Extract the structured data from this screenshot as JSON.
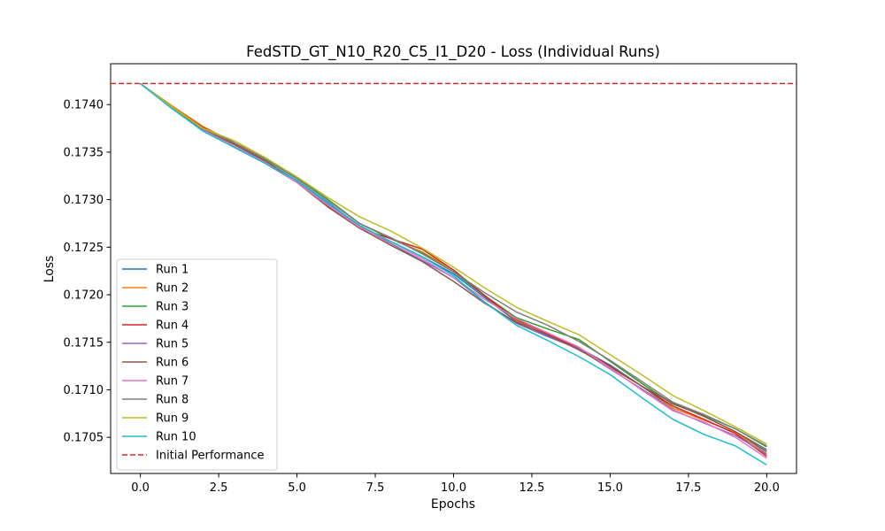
{
  "chart_data": {
    "type": "line",
    "title": "FedSTD_GT_N10_R20_C5_I1_D20 - Loss (Individual Runs)",
    "xlabel": "Epochs",
    "ylabel": "Loss",
    "xlim": [
      -0.95,
      20.95
    ],
    "ylim": [
      0.17012,
      0.17443
    ],
    "xticks": [
      0.0,
      2.5,
      5.0,
      7.5,
      10.0,
      12.5,
      15.0,
      17.5,
      20.0
    ],
    "xtick_labels": [
      "0.0",
      "2.5",
      "5.0",
      "7.5",
      "10.0",
      "12.5",
      "15.0",
      "17.5",
      "20.0"
    ],
    "yticks": [
      0.1705,
      0.171,
      0.1715,
      0.172,
      0.1725,
      0.173,
      0.1735,
      0.174
    ],
    "ytick_labels": [
      "0.1705",
      "0.1710",
      "0.1715",
      "0.1720",
      "0.1725",
      "0.1730",
      "0.1735",
      "0.1740"
    ],
    "grid": false,
    "legend_position": "lower-left",
    "x": [
      0,
      1,
      2,
      3,
      4,
      5,
      6,
      7,
      8,
      9,
      10,
      11,
      12,
      13,
      14,
      15,
      16,
      17,
      18,
      19,
      20
    ],
    "series": [
      {
        "name": "Run 1",
        "color": "#1f77b4",
        "values": [
          0.17422,
          0.17398,
          0.17374,
          0.17358,
          0.1734,
          0.1732,
          0.17297,
          0.17272,
          0.17256,
          0.1724,
          0.17222,
          0.17197,
          0.17172,
          0.17157,
          0.17144,
          0.17126,
          0.17104,
          0.17081,
          0.17068,
          0.17055,
          0.17035
        ]
      },
      {
        "name": "Run 2",
        "color": "#ff7f0e",
        "values": [
          0.17422,
          0.17399,
          0.17377,
          0.1736,
          0.17344,
          0.17323,
          0.17299,
          0.17275,
          0.17259,
          0.17245,
          0.17226,
          0.17199,
          0.17173,
          0.1716,
          0.17144,
          0.17122,
          0.17101,
          0.17081,
          0.17068,
          0.17055,
          0.17033
        ]
      },
      {
        "name": "Run 3",
        "color": "#2ca02c",
        "values": [
          0.17422,
          0.17398,
          0.17375,
          0.17359,
          0.17343,
          0.17323,
          0.173,
          0.17275,
          0.17259,
          0.17244,
          0.17224,
          0.17199,
          0.17176,
          0.17164,
          0.17153,
          0.1713,
          0.17107,
          0.17085,
          0.17073,
          0.17059,
          0.1704
        ]
      },
      {
        "name": "Run 4",
        "color": "#d62728",
        "values": [
          0.17422,
          0.17398,
          0.17376,
          0.1736,
          0.1734,
          0.17319,
          0.17293,
          0.1727,
          0.17259,
          0.17248,
          0.17226,
          0.17199,
          0.17174,
          0.17159,
          0.17144,
          0.17125,
          0.17104,
          0.17083,
          0.17069,
          0.17054,
          0.1703
        ]
      },
      {
        "name": "Run 5",
        "color": "#9467bd",
        "values": [
          0.17422,
          0.17398,
          0.17373,
          0.17355,
          0.17338,
          0.17318,
          0.17295,
          0.17272,
          0.17254,
          0.17236,
          0.17218,
          0.17192,
          0.1717,
          0.17156,
          0.17143,
          0.17122,
          0.17101,
          0.17079,
          0.17065,
          0.17052,
          0.17032
        ]
      },
      {
        "name": "Run 6",
        "color": "#8c564b",
        "values": [
          0.17422,
          0.17398,
          0.17374,
          0.17358,
          0.17341,
          0.17318,
          0.17292,
          0.1727,
          0.17252,
          0.17235,
          0.17214,
          0.17191,
          0.17171,
          0.17158,
          0.17142,
          0.17124,
          0.17104,
          0.17086,
          0.17072,
          0.17056,
          0.17037
        ]
      },
      {
        "name": "Run 7",
        "color": "#e377c2",
        "values": [
          0.17422,
          0.17397,
          0.17373,
          0.17356,
          0.17339,
          0.17318,
          0.17294,
          0.17271,
          0.17256,
          0.17238,
          0.17218,
          0.17195,
          0.17175,
          0.1716,
          0.17145,
          0.17123,
          0.171,
          0.17078,
          0.17066,
          0.1705,
          0.17028
        ]
      },
      {
        "name": "Run 8",
        "color": "#7f7f7f",
        "values": [
          0.17422,
          0.17397,
          0.17374,
          0.1736,
          0.17342,
          0.17322,
          0.17299,
          0.17275,
          0.1726,
          0.17243,
          0.17224,
          0.17202,
          0.17182,
          0.17168,
          0.17151,
          0.17131,
          0.17109,
          0.17087,
          0.17074,
          0.17059,
          0.17041
        ]
      },
      {
        "name": "Run 9",
        "color": "#bcbd22",
        "values": [
          0.17422,
          0.17398,
          0.17375,
          0.17362,
          0.17344,
          0.17324,
          0.17302,
          0.17282,
          0.17267,
          0.17249,
          0.17229,
          0.17207,
          0.17187,
          0.17172,
          0.17158,
          0.17137,
          0.17116,
          0.17094,
          0.17078,
          0.17061,
          0.17043
        ]
      },
      {
        "name": "Run 10",
        "color": "#17becf",
        "values": [
          0.17422,
          0.17396,
          0.17372,
          0.17355,
          0.17338,
          0.1732,
          0.17296,
          0.17273,
          0.17256,
          0.1724,
          0.1722,
          0.17192,
          0.17168,
          0.17152,
          0.17135,
          0.17116,
          0.17092,
          0.17069,
          0.17053,
          0.17041,
          0.17021
        ]
      }
    ],
    "reference_line": {
      "name": "Initial Performance",
      "value": 0.174222,
      "color": "#d62728",
      "style": "dashed"
    }
  }
}
